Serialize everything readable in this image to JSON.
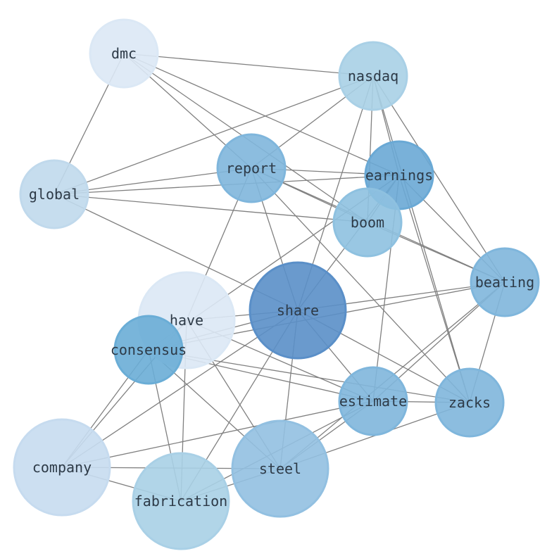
{
  "nodes": [
    {
      "id": "dmc",
      "label": "dmc",
      "color": "#dbe8f5"
    },
    {
      "id": "nasdaq",
      "label": "nasdaq",
      "color": "#a9d0e6"
    },
    {
      "id": "report",
      "label": "report",
      "color": "#7fb6dc"
    },
    {
      "id": "earnings",
      "label": "earnings",
      "color": "#6aa9d5"
    },
    {
      "id": "global",
      "label": "global",
      "color": "#c0d9ec"
    },
    {
      "id": "boom",
      "label": "boom",
      "color": "#8ec1e0"
    },
    {
      "id": "beating",
      "label": "beating",
      "color": "#7fb6dc"
    },
    {
      "id": "share",
      "label": "share",
      "color": "#5a8fc8"
    },
    {
      "id": "have",
      "label": "have",
      "color": "#dbe8f5"
    },
    {
      "id": "consensus",
      "label": "consensus",
      "color": "#6aadd6"
    },
    {
      "id": "estimate",
      "label": "estimate",
      "color": "#7fb6dc"
    },
    {
      "id": "zacks",
      "label": "zacks",
      "color": "#7fb6dc"
    },
    {
      "id": "company",
      "label": "company",
      "color": "#c6dbef"
    },
    {
      "id": "steel",
      "label": "steel",
      "color": "#92c0e1"
    },
    {
      "id": "fabrication",
      "label": "fabrication",
      "color": "#a9d0e6"
    }
  ],
  "edges": [
    [
      "dmc",
      "nasdaq"
    ],
    [
      "dmc",
      "global"
    ],
    [
      "dmc",
      "earnings"
    ],
    [
      "dmc",
      "boom"
    ],
    [
      "dmc",
      "report"
    ],
    [
      "nasdaq",
      "global"
    ],
    [
      "nasdaq",
      "report"
    ],
    [
      "nasdaq",
      "earnings"
    ],
    [
      "nasdaq",
      "boom"
    ],
    [
      "nasdaq",
      "beating"
    ],
    [
      "nasdaq",
      "zacks"
    ],
    [
      "nasdaq",
      "share"
    ],
    [
      "report",
      "global"
    ],
    [
      "report",
      "earnings"
    ],
    [
      "report",
      "boom"
    ],
    [
      "report",
      "beating"
    ],
    [
      "report",
      "zacks"
    ],
    [
      "report",
      "share"
    ],
    [
      "report",
      "have"
    ],
    [
      "earnings",
      "global"
    ],
    [
      "earnings",
      "boom"
    ],
    [
      "earnings",
      "beating"
    ],
    [
      "earnings",
      "share"
    ],
    [
      "earnings",
      "estimate"
    ],
    [
      "earnings",
      "zacks"
    ],
    [
      "earnings",
      "consensus"
    ],
    [
      "global",
      "boom"
    ],
    [
      "global",
      "share"
    ],
    [
      "boom",
      "beating"
    ],
    [
      "share",
      "beating"
    ],
    [
      "share",
      "have"
    ],
    [
      "share",
      "consensus"
    ],
    [
      "share",
      "company"
    ],
    [
      "share",
      "steel"
    ],
    [
      "share",
      "fabrication"
    ],
    [
      "share",
      "estimate"
    ],
    [
      "share",
      "zacks"
    ],
    [
      "beating",
      "consensus"
    ],
    [
      "beating",
      "zacks"
    ],
    [
      "beating",
      "estimate"
    ],
    [
      "beating",
      "steel"
    ],
    [
      "have",
      "company"
    ],
    [
      "have",
      "steel"
    ],
    [
      "have",
      "fabrication"
    ],
    [
      "have",
      "estimate"
    ],
    [
      "consensus",
      "zacks"
    ],
    [
      "consensus",
      "estimate"
    ],
    [
      "consensus",
      "company"
    ],
    [
      "consensus",
      "fabrication"
    ],
    [
      "consensus",
      "steel"
    ],
    [
      "estimate",
      "zacks"
    ],
    [
      "estimate",
      "steel"
    ],
    [
      "estimate",
      "company"
    ],
    [
      "estimate",
      "fabrication"
    ],
    [
      "zacks",
      "steel"
    ],
    [
      "company",
      "steel"
    ],
    [
      "company",
      "fabrication"
    ],
    [
      "steel",
      "fabrication"
    ]
  ],
  "edge_color": "#808080"
}
